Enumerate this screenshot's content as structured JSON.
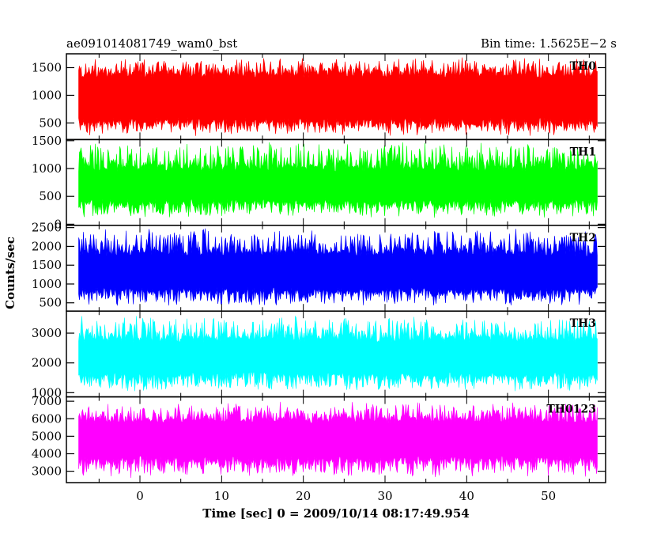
{
  "header": {
    "left_title": "ae091014081749_wam0_bst",
    "right_title": "Bin time: 1.5625E−2 s"
  },
  "chart_data": {
    "type": "line",
    "title": "ae091014081749_wam0_bst",
    "subtitle": "Bin time: 1.5625E−2 s",
    "xlabel": "Time [sec] 0 = 2009/10/14 08:17:49.954",
    "ylabel": "Counts/sec",
    "xlim": [
      -9,
      57
    ],
    "x_ticks": [
      0,
      10,
      20,
      30,
      40,
      50
    ],
    "x_tick_labels": [
      "0",
      "10",
      "20",
      "30",
      "40",
      "50"
    ],
    "data_x_range": [
      -7.5,
      56
    ],
    "grid": false,
    "legend": "none",
    "panels": [
      {
        "name": "TH0",
        "color": "#ff0000",
        "ylim": [
          200,
          1750
        ],
        "y_ticks": [
          500,
          1000,
          1500
        ],
        "y_tick_labels": [
          "500",
          "1000",
          "1500"
        ],
        "typical_min": 250,
        "typical_max": 1700,
        "band_low": 450,
        "band_high": 1450
      },
      {
        "name": "TH1",
        "color": "#00ff00",
        "ylim": [
          -20,
          1520
        ],
        "y_ticks": [
          0,
          500,
          1000,
          1500
        ],
        "y_tick_labels": [
          "0",
          "500",
          "1000",
          "1500"
        ],
        "typical_min": 100,
        "typical_max": 1500,
        "band_low": 350,
        "band_high": 1050
      },
      {
        "name": "TH2",
        "color": "#0000ff",
        "ylim": [
          280,
          2560
        ],
        "y_ticks": [
          500,
          1000,
          1500,
          2000,
          2500
        ],
        "y_tick_labels": [
          "500",
          "1000",
          "1500",
          "2000",
          "2500"
        ],
        "typical_min": 400,
        "typical_max": 2500,
        "band_low": 750,
        "band_high": 1900
      },
      {
        "name": "TH3",
        "color": "#00ffff",
        "ylim": [
          860,
          3740
        ],
        "y_ticks": [
          1000,
          2000,
          3000
        ],
        "y_tick_labels": [
          "1000",
          "2000",
          "3000"
        ],
        "typical_min": 1000,
        "typical_max": 3600,
        "band_low": 1500,
        "band_high": 2900
      },
      {
        "name": "TH0123",
        "color": "#ff00ff",
        "ylim": [
          2350,
          7250
        ],
        "y_ticks": [
          3000,
          4000,
          5000,
          6000,
          7000
        ],
        "y_tick_labels": [
          "3000",
          "4000",
          "5000",
          "6000",
          "7000"
        ],
        "typical_min": 2600,
        "typical_max": 7000,
        "band_low": 3500,
        "band_high": 6100
      }
    ]
  }
}
